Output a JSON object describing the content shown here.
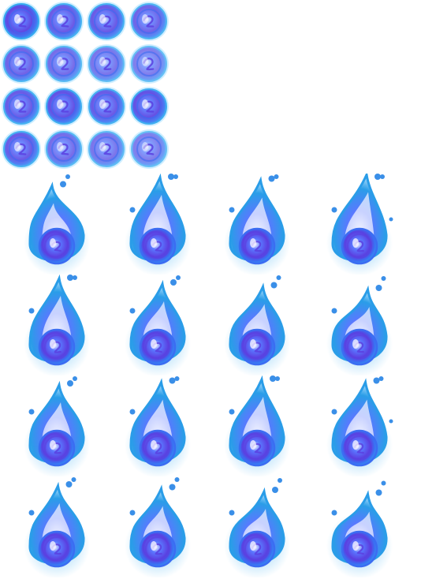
{
  "sheet": {
    "background": "#ffffff",
    "palette": {
      "outer_glow": "#2fa8f0",
      "ring": "#3b6df2",
      "core": "#5b3fe0",
      "highlight": "#f2f0ff",
      "flame_edge": "#2a9de8",
      "flame_mid": "#5a78ff",
      "flame_tip": "#eef0ff",
      "ember": "#3a8fe8"
    },
    "orb_sprites": {
      "rows": 4,
      "cols": 4,
      "frames": [
        {
          "icon": "orb-swirl-icon",
          "swirl": 0.15,
          "brightness": 0.95
        },
        {
          "icon": "orb-swirl-icon",
          "swirl": 0.25,
          "brightness": 0.85
        },
        {
          "icon": "orb-swirl-icon",
          "swirl": 0.35,
          "brightness": 0.85
        },
        {
          "icon": "orb-swirl-icon",
          "swirl": 0.45,
          "brightness": 0.8
        },
        {
          "icon": "orb-swirl-icon",
          "swirl": 0.55,
          "brightness": 0.8
        },
        {
          "icon": "orb-swirl-icon",
          "swirl": 0.6,
          "brightness": 0.75
        },
        {
          "icon": "orb-swirl-icon",
          "swirl": 0.65,
          "brightness": 0.7
        },
        {
          "icon": "orb-swirl-icon",
          "swirl": 0.7,
          "brightness": 0.65
        },
        {
          "icon": "orb-swirl-icon",
          "swirl": 0.5,
          "brightness": 0.85
        },
        {
          "icon": "orb-swirl-icon",
          "swirl": 0.45,
          "brightness": 0.9
        },
        {
          "icon": "orb-swirl-icon",
          "swirl": 0.4,
          "brightness": 0.85
        },
        {
          "icon": "orb-swirl-icon",
          "swirl": 0.35,
          "brightness": 0.9
        },
        {
          "icon": "orb-swirl-icon",
          "swirl": 0.3,
          "brightness": 0.85
        },
        {
          "icon": "orb-swirl-icon",
          "swirl": 0.25,
          "brightness": 0.75
        },
        {
          "icon": "orb-swirl-icon",
          "swirl": 0.2,
          "brightness": 0.7
        },
        {
          "icon": "orb-swirl-icon",
          "swirl": 0.1,
          "brightness": 0.65
        }
      ]
    },
    "flame_sprites": {
      "rows": 4,
      "cols": 4,
      "frames": [
        {
          "icon": "blue-flame-orb-icon",
          "lean": -0.2,
          "flame_height": 0.55,
          "embers": 2
        },
        {
          "icon": "blue-flame-orb-icon",
          "lean": 0.1,
          "flame_height": 0.7,
          "embers": 3
        },
        {
          "icon": "blue-flame-orb-icon",
          "lean": 0.15,
          "flame_height": 0.65,
          "embers": 3
        },
        {
          "icon": "blue-flame-orb-icon",
          "lean": 0.3,
          "flame_height": 0.75,
          "embers": 4
        },
        {
          "icon": "blue-flame-orb-icon",
          "lean": 0.1,
          "flame_height": 0.7,
          "embers": 3
        },
        {
          "icon": "blue-flame-orb-icon",
          "lean": 0.2,
          "flame_height": 0.6,
          "embers": 3
        },
        {
          "icon": "blue-flame-orb-icon",
          "lean": 0.25,
          "flame_height": 0.55,
          "embers": 2
        },
        {
          "icon": "blue-flame-orb-icon",
          "lean": 0.35,
          "flame_height": 0.5,
          "embers": 3
        },
        {
          "icon": "blue-flame-orb-icon",
          "lean": 0.1,
          "flame_height": 0.6,
          "embers": 3
        },
        {
          "icon": "blue-flame-orb-icon",
          "lean": 0.15,
          "flame_height": 0.65,
          "embers": 3
        },
        {
          "icon": "blue-flame-orb-icon",
          "lean": 0.2,
          "flame_height": 0.7,
          "embers": 3
        },
        {
          "icon": "blue-flame-orb-icon",
          "lean": 0.25,
          "flame_height": 0.65,
          "embers": 4
        },
        {
          "icon": "blue-flame-orb-icon",
          "lean": 0.05,
          "flame_height": 0.6,
          "embers": 3
        },
        {
          "icon": "blue-flame-orb-icon",
          "lean": 0.15,
          "flame_height": 0.55,
          "embers": 3
        },
        {
          "icon": "blue-flame-orb-icon",
          "lean": 0.3,
          "flame_height": 0.5,
          "embers": 3
        },
        {
          "icon": "blue-flame-orb-icon",
          "lean": 0.35,
          "flame_height": 0.45,
          "embers": 3
        }
      ]
    }
  }
}
